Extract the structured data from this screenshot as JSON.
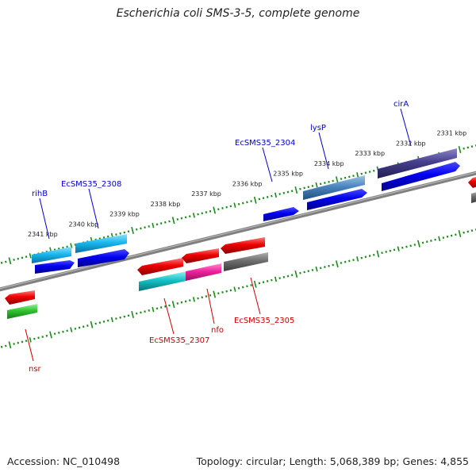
{
  "title": "Escherichia coli SMS-3-5, complete genome",
  "footer": {
    "accession": "Accession: NC_010498",
    "summary": "Topology: circular; Length: 5,068,389 bp; Genes: 4,855"
  },
  "ruler_ticks": [
    {
      "label": "2331 kbp",
      "kbp": 2331
    },
    {
      "label": "2332 kbp",
      "kbp": 2332
    },
    {
      "label": "2333 kbp",
      "kbp": 2333
    },
    {
      "label": "2334 kbp",
      "kbp": 2334
    },
    {
      "label": "2335 kbp",
      "kbp": 2335
    },
    {
      "label": "2336 kbp",
      "kbp": 2336
    },
    {
      "label": "2337 kbp",
      "kbp": 2337
    },
    {
      "label": "2338 kbp",
      "kbp": 2338
    },
    {
      "label": "2339 kbp",
      "kbp": 2339
    },
    {
      "label": "2340 kbp",
      "kbp": 2340
    },
    {
      "label": "2341 kbp",
      "kbp": 2341
    }
  ],
  "gene_labels": [
    {
      "text": "cirA",
      "color": "#0000cc"
    },
    {
      "text": "lysP",
      "color": "#0000cc"
    },
    {
      "text": "EcSMS35_2304",
      "color": "#0000cc"
    },
    {
      "text": "EcSMS35_2308",
      "color": "#0000cc"
    },
    {
      "text": "rihB",
      "color": "#0000cc"
    },
    {
      "text": "EcSMS35_2305",
      "color": "#cc0000"
    },
    {
      "text": "nfo",
      "color": "#cc0000"
    },
    {
      "text": "EcSMS35_2307",
      "color": "#cc0000"
    },
    {
      "text": "nsr",
      "color": "#cc0000"
    }
  ],
  "colors": {
    "backbone": "#808080",
    "tick": "#1a8a1a",
    "forward_cds": "#0000ee",
    "reverse_cds": "#ee0000"
  }
}
